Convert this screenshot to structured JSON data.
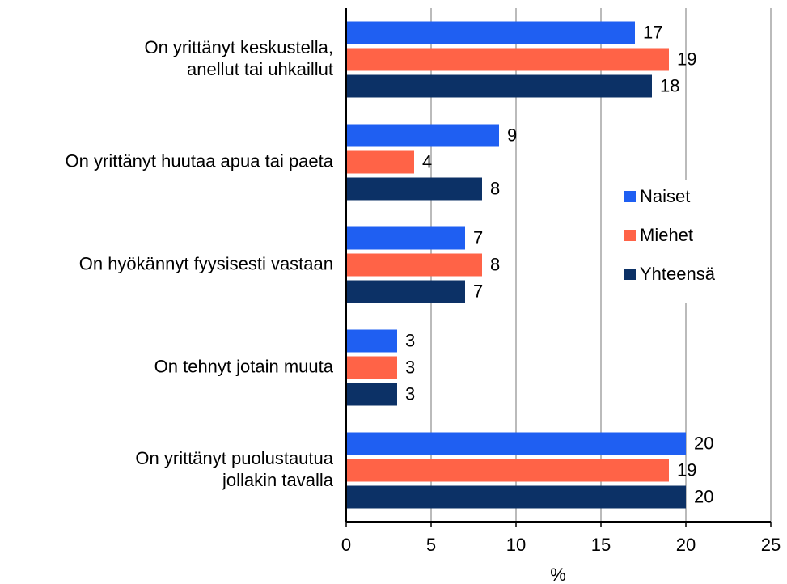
{
  "chart_data": {
    "type": "bar",
    "orientation": "horizontal",
    "categories": [
      "On yrittänyt keskustella,\nanellut tai uhkaillut",
      "On yrittänyt huutaa apua tai paeta",
      "On hyökännyt fyysisesti vastaan",
      "On tehnyt jotain muuta",
      "On yrittänyt puolustautua\njollakin tavalla"
    ],
    "series": [
      {
        "name": "Naiset",
        "color": "#1f5ff2",
        "values": [
          17,
          9,
          7,
          3,
          20
        ]
      },
      {
        "name": "Miehet",
        "color": "#ff6347",
        "values": [
          19,
          4,
          8,
          3,
          19
        ]
      },
      {
        "name": "Yhteensä",
        "color": "#0c3166",
        "values": [
          18,
          8,
          7,
          3,
          20
        ]
      }
    ],
    "x_label": "%",
    "xlim": [
      0,
      25
    ],
    "xticks": [
      0,
      5,
      10,
      15,
      20,
      25
    ],
    "grid": true,
    "legend": "right"
  }
}
